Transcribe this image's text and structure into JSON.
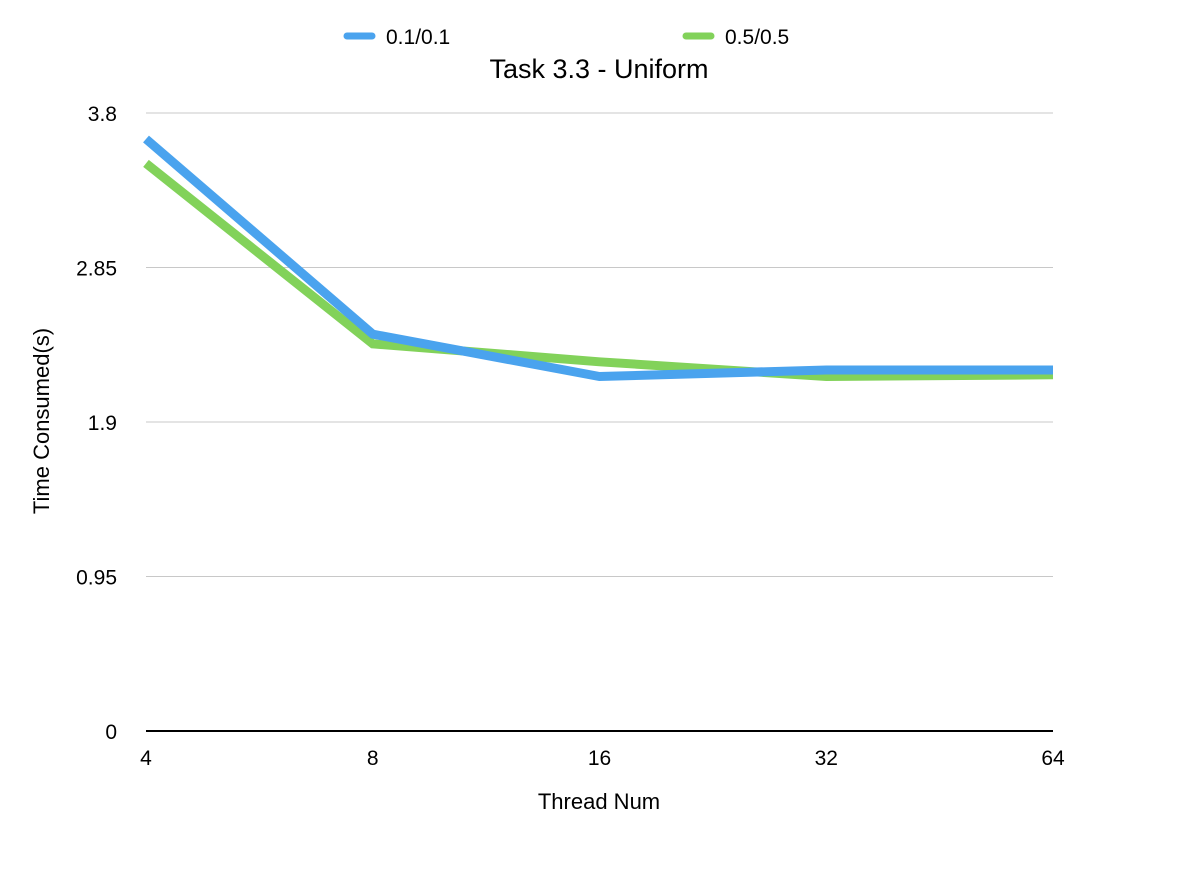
{
  "chart_data": {
    "type": "line",
    "title": "Task 3.3 - Uniform",
    "xlabel": "Thread Num",
    "ylabel": "Time Consumed(s)",
    "categories": [
      "4",
      "8",
      "16",
      "32",
      "64"
    ],
    "y_ticks": [
      "0",
      "0.95",
      "1.9",
      "2.85",
      "3.8"
    ],
    "ylim": [
      0,
      3.8
    ],
    "grid": true,
    "legend_position": "top",
    "series": [
      {
        "name": "0.1/0.1",
        "color": "#4aa3ee",
        "values": [
          3.64,
          2.44,
          2.18,
          2.22,
          2.22
        ]
      },
      {
        "name": "0.5/0.5",
        "color": "#82d25a",
        "values": [
          3.49,
          2.38,
          2.27,
          2.18,
          2.19
        ]
      }
    ]
  }
}
